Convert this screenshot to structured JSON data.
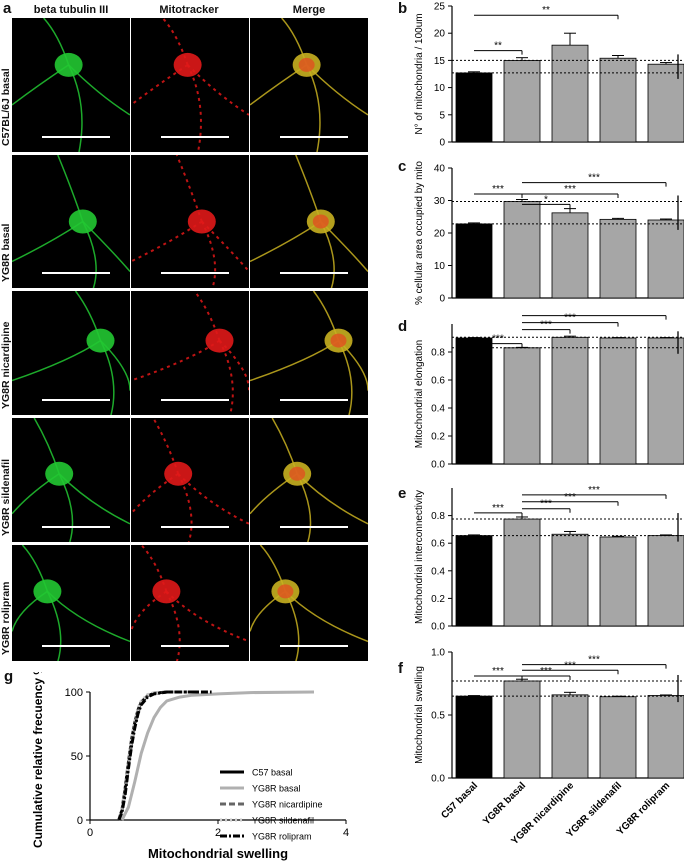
{
  "panels": {
    "a": "a",
    "b": "b",
    "c": "c",
    "d": "d",
    "e": "e",
    "f": "f",
    "g": "g"
  },
  "micrograph": {
    "columns": [
      "beta tubulin III",
      "Mitotracker",
      "Merge"
    ],
    "rows": [
      "C57BL/6J basal",
      "YG8R basal",
      "YG8R nicardipine",
      "YG8R sildenafil",
      "YG8R rolipram"
    ]
  },
  "colors": {
    "black_bar": "#000000",
    "grey_bar": "#a6a6a6",
    "green_channel": "#22c832",
    "red_channel": "#e01818",
    "merge_channel": "#c8b020"
  },
  "categories": [
    "C57 basal",
    "YG8R basal",
    "YG8R nicardipine",
    "YG8R sildenafil",
    "YG8R rolipram"
  ],
  "chart_data": [
    {
      "panel": "b",
      "type": "bar",
      "ylabel": "N° of mitochondria / 100um",
      "ylim": [
        0,
        25
      ],
      "yticks": [
        0,
        5,
        10,
        15,
        20,
        25
      ],
      "values": [
        12.7,
        15.0,
        17.8,
        15.4,
        14.3
      ],
      "errors": [
        0.2,
        0.5,
        2.2,
        0.5,
        0.3
      ],
      "bar_colors": [
        "#000000",
        "#a6a6a6",
        "#a6a6a6",
        "#a6a6a6",
        "#a6a6a6"
      ],
      "ref_lines": [
        15.0,
        12.7
      ],
      "significance": [
        {
          "from": 0,
          "to": 1,
          "label": "**",
          "y": 16.8
        },
        {
          "from": 0,
          "to": 3,
          "label": "**",
          "y": 23.3
        }
      ]
    },
    {
      "panel": "c",
      "type": "bar",
      "ylabel": "% cellular area occupied by mito",
      "ylim": [
        0,
        40
      ],
      "yticks": [
        0,
        10,
        20,
        30,
        40
      ],
      "values": [
        22.8,
        29.7,
        26.2,
        24.2,
        24.0
      ],
      "errors": [
        0.3,
        0.6,
        1.3,
        0.3,
        0.3
      ],
      "bar_colors": [
        "#000000",
        "#a6a6a6",
        "#a6a6a6",
        "#a6a6a6",
        "#a6a6a6"
      ],
      "ref_lines": [
        29.7,
        22.8
      ],
      "significance": [
        {
          "from": 0,
          "to": 1,
          "label": "***",
          "y": 32
        },
        {
          "from": 1,
          "to": 2,
          "label": "*",
          "y": 28.8
        },
        {
          "from": 1,
          "to": 3,
          "label": "***",
          "y": 32
        },
        {
          "from": 1,
          "to": 4,
          "label": "***",
          "y": 35.5
        }
      ]
    },
    {
      "panel": "d",
      "type": "bar",
      "ylabel": "Mitochondrial elongation",
      "ylim": [
        0,
        1.0
      ],
      "yticks": [
        0,
        0.2,
        0.4,
        0.6,
        0.8
      ],
      "ytick_labels": [
        "0.0",
        "0.2",
        "0.4",
        "0.6",
        "0.8"
      ],
      "values": [
        0.9,
        0.83,
        0.905,
        0.9,
        0.9
      ],
      "errors": [
        0.003,
        0.003,
        0.008,
        0.003,
        0.003
      ],
      "bar_colors": [
        "#000000",
        "#a6a6a6",
        "#a6a6a6",
        "#a6a6a6",
        "#a6a6a6"
      ],
      "ref_lines": [
        0.905,
        0.83
      ],
      "significance": [
        {
          "from": 0,
          "to": 1,
          "label": "***",
          "y": 0.86
        },
        {
          "from": 1,
          "to": 2,
          "label": "***",
          "y": 0.96
        },
        {
          "from": 1,
          "to": 3,
          "label": "***",
          "y": 1.01
        },
        {
          "from": 1,
          "to": 4,
          "label": "***",
          "y": 1.06
        }
      ]
    },
    {
      "panel": "e",
      "type": "bar",
      "ylabel": "Mitochondrial interconnectivity",
      "ylim": [
        0,
        1.0
      ],
      "yticks": [
        0,
        0.2,
        0.4,
        0.6,
        0.8
      ],
      "ytick_labels": [
        "0.0",
        "0.2",
        "0.4",
        "0.6",
        "0.8"
      ],
      "values": [
        0.655,
        0.775,
        0.665,
        0.645,
        0.655
      ],
      "errors": [
        0.005,
        0.015,
        0.02,
        0.005,
        0.005
      ],
      "bar_colors": [
        "#000000",
        "#a6a6a6",
        "#a6a6a6",
        "#a6a6a6",
        "#a6a6a6"
      ],
      "ref_lines": [
        0.775,
        0.655
      ],
      "significance": [
        {
          "from": 0,
          "to": 1,
          "label": "***",
          "y": 0.82
        },
        {
          "from": 1,
          "to": 2,
          "label": "***",
          "y": 0.85
        },
        {
          "from": 1,
          "to": 3,
          "label": "***",
          "y": 0.9
        },
        {
          "from": 1,
          "to": 4,
          "label": "***",
          "y": 0.95
        }
      ]
    },
    {
      "panel": "f",
      "type": "bar",
      "ylabel": "Mitochondrial swelling",
      "ylim": [
        0,
        1.0
      ],
      "yticks": [
        0,
        0.5,
        1.0
      ],
      "ytick_labels": [
        "0.0",
        "0.5",
        "1.0"
      ],
      "values": [
        0.65,
        0.77,
        0.66,
        0.645,
        0.655
      ],
      "errors": [
        0.004,
        0.014,
        0.02,
        0.004,
        0.004
      ],
      "bar_colors": [
        "#000000",
        "#a6a6a6",
        "#a6a6a6",
        "#a6a6a6",
        "#a6a6a6"
      ],
      "ref_lines": [
        0.77,
        0.65
      ],
      "significance": [
        {
          "from": 0,
          "to": 1,
          "label": "***",
          "y": 0.81
        },
        {
          "from": 1,
          "to": 2,
          "label": "***",
          "y": 0.81
        },
        {
          "from": 1,
          "to": 3,
          "label": "***",
          "y": 0.855
        },
        {
          "from": 1,
          "to": 4,
          "label": "***",
          "y": 0.9
        }
      ]
    },
    {
      "panel": "g",
      "type": "line",
      "xlabel": "Mitochondrial swelling",
      "ylabel": "Cumulative relative frecuency %",
      "xlim": [
        0,
        4
      ],
      "ylim": [
        0,
        100
      ],
      "xticks": [
        0,
        2,
        4
      ],
      "yticks": [
        0,
        50,
        100
      ],
      "series": [
        {
          "name": "C57 basal",
          "color": "#000000",
          "dash": "solid",
          "x": [
            0.45,
            0.5,
            0.55,
            0.6,
            0.65,
            0.7,
            0.75,
            0.8,
            0.9,
            1.0,
            1.2,
            1.7
          ],
          "y": [
            0,
            8,
            25,
            45,
            63,
            76,
            86,
            92,
            97,
            99,
            100,
            100
          ]
        },
        {
          "name": "YG8R basal",
          "color": "#b0b0b0",
          "dash": "solid",
          "x": [
            0.5,
            0.6,
            0.7,
            0.8,
            0.9,
            1.0,
            1.1,
            1.2,
            1.4,
            1.6,
            2.0,
            2.5,
            3.5
          ],
          "y": [
            0,
            10,
            30,
            52,
            68,
            80,
            88,
            93,
            96,
            97.5,
            98.5,
            99.5,
            100
          ]
        },
        {
          "name": "YG8R nicardipine",
          "color": "#666666",
          "dash": "dashed",
          "x": [
            0.45,
            0.5,
            0.55,
            0.6,
            0.65,
            0.7,
            0.75,
            0.8,
            0.9,
            1.0,
            1.2,
            1.5
          ],
          "y": [
            0,
            7,
            22,
            42,
            60,
            74,
            84,
            91,
            97,
            99,
            100,
            100
          ]
        },
        {
          "name": "YG8R sildenafil",
          "color": "#c8c8c8",
          "dash": "dotted",
          "x": [
            0.45,
            0.5,
            0.55,
            0.6,
            0.65,
            0.7,
            0.75,
            0.8,
            0.9,
            1.0,
            1.2,
            1.6
          ],
          "y": [
            0,
            9,
            26,
            46,
            64,
            77,
            87,
            93,
            98,
            99.5,
            100,
            100
          ]
        },
        {
          "name": "YG8R rolipram",
          "color": "#000000",
          "dash": "dashdot",
          "x": [
            0.45,
            0.5,
            0.55,
            0.6,
            0.65,
            0.7,
            0.75,
            0.8,
            0.9,
            1.0,
            1.2,
            1.9
          ],
          "y": [
            0,
            6,
            20,
            40,
            58,
            72,
            83,
            90,
            96,
            98.5,
            100,
            100
          ]
        }
      ]
    }
  ]
}
